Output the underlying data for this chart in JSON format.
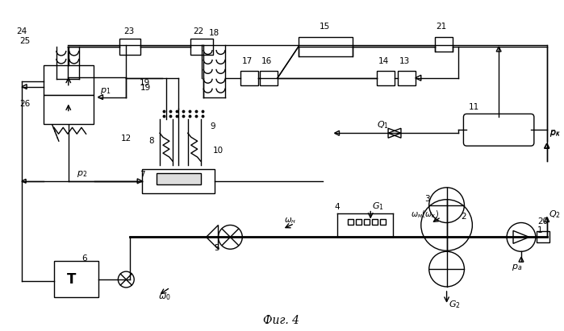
{
  "title": "Фиг. 4",
  "bg_color": "#ffffff",
  "lc": "#000000",
  "lw": 1.0
}
